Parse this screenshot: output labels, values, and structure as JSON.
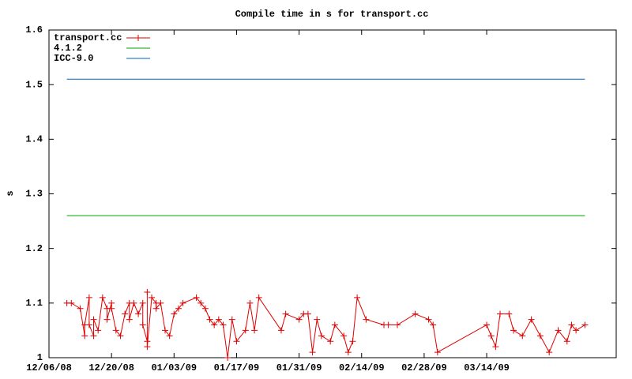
{
  "chart_data": {
    "type": "line",
    "title": "Compile time in s for transport.cc",
    "ylabel": "s",
    "xlim": [
      "12/06/08",
      "04/12/09"
    ],
    "xticks": [
      "12/06/08",
      "12/20/08",
      "01/03/09",
      "01/17/09",
      "01/31/09",
      "02/14/09",
      "02/28/09",
      "03/14/09"
    ],
    "ylim": [
      1,
      1.6
    ],
    "yticks": [
      1,
      1.1,
      1.2,
      1.3,
      1.4,
      1.5,
      1.6
    ],
    "legend": "top-left",
    "series": [
      {
        "name": "transport.cc",
        "color": "#e00000",
        "marker": "+",
        "x": [
          "12/10/08",
          "12/11/08",
          "12/13/08",
          "12/14/08",
          "12/14/08",
          "12/15/08",
          "12/15/08",
          "12/16/08",
          "12/16/08",
          "12/17/08",
          "12/18/08",
          "12/19/08",
          "12/19/08",
          "12/20/08",
          "12/20/08",
          "12/21/08",
          "12/22/08",
          "12/23/08",
          "12/24/08",
          "12/24/08",
          "12/25/08",
          "12/26/08",
          "12/27/08",
          "12/27/08",
          "12/28/08",
          "12/28/08",
          "12/28/08",
          "12/29/08",
          "12/30/08",
          "12/30/08",
          "12/31/08",
          "01/01/09",
          "01/02/09",
          "01/03/09",
          "01/04/09",
          "01/05/09",
          "01/08/09",
          "01/09/09",
          "01/10/09",
          "01/11/09",
          "01/12/09",
          "01/13/09",
          "01/14/09",
          "01/15/09",
          "01/16/09",
          "01/17/09",
          "01/19/09",
          "01/20/09",
          "01/21/09",
          "01/22/09",
          "01/27/09",
          "01/28/09",
          "01/31/09",
          "02/01/09",
          "02/02/09",
          "02/03/09",
          "02/04/09",
          "02/05/09",
          "02/07/09",
          "02/08/09",
          "02/10/09",
          "02/11/09",
          "02/12/09",
          "02/13/09",
          "02/15/09",
          "02/19/09",
          "02/20/09",
          "02/22/09",
          "02/26/09",
          "03/01/09",
          "03/02/09",
          "03/03/09",
          "03/14/09",
          "03/15/09",
          "03/16/09",
          "03/17/09",
          "03/19/09",
          "03/20/09",
          "03/22/09",
          "03/24/09",
          "03/26/09",
          "03/28/09",
          "03/30/09",
          "04/01/09",
          "04/02/09",
          "04/03/09",
          "04/05/09"
        ],
        "values": [
          1.1,
          1.1,
          1.09,
          1.04,
          1.06,
          1.11,
          1.06,
          1.04,
          1.07,
          1.05,
          1.11,
          1.09,
          1.07,
          1.1,
          1.09,
          1.05,
          1.04,
          1.08,
          1.1,
          1.07,
          1.1,
          1.08,
          1.1,
          1.06,
          1.03,
          1.12,
          1.02,
          1.11,
          1.1,
          1.09,
          1.1,
          1.05,
          1.04,
          1.08,
          1.09,
          1.1,
          1.11,
          1.1,
          1.09,
          1.07,
          1.06,
          1.07,
          1.06,
          1.0,
          1.07,
          1.03,
          1.05,
          1.1,
          1.05,
          1.11,
          1.05,
          1.08,
          1.07,
          1.08,
          1.08,
          1.01,
          1.07,
          1.04,
          1.03,
          1.06,
          1.04,
          1.01,
          1.03,
          1.11,
          1.07,
          1.06,
          1.06,
          1.06,
          1.08,
          1.07,
          1.06,
          1.01,
          1.06,
          1.04,
          1.02,
          1.08,
          1.08,
          1.05,
          1.04,
          1.07,
          1.04,
          1.01,
          1.05,
          1.03,
          1.06,
          1.05,
          1.06
        ]
      },
      {
        "name": "4.1.2",
        "color": "#00a000",
        "x": [
          "12/10/08",
          "04/05/09"
        ],
        "values": [
          1.26,
          1.26
        ]
      },
      {
        "name": "ICC-9.0",
        "color": "#0060c0",
        "x": [
          "12/10/08",
          "04/05/09"
        ],
        "values": [
          1.51,
          1.51
        ]
      }
    ]
  }
}
